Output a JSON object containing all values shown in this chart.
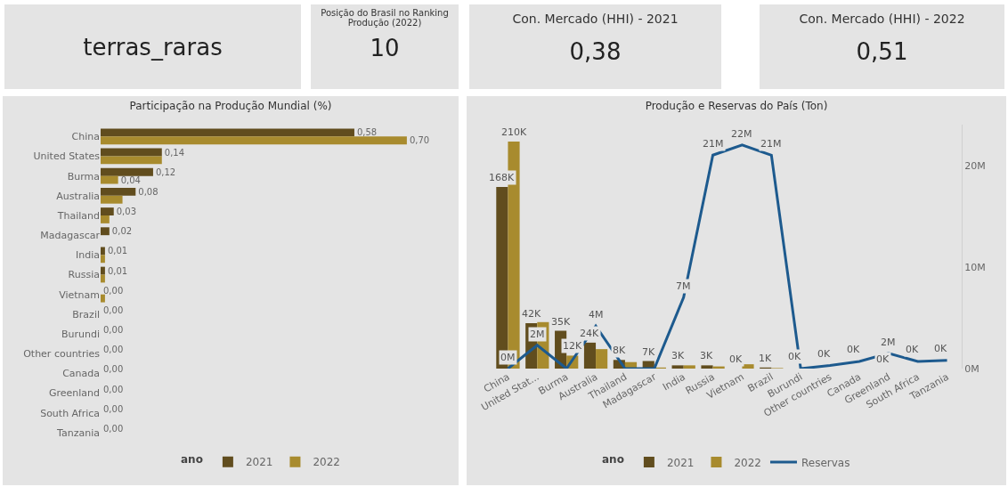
{
  "chart_data": [
    {
      "type": "other",
      "title": "terras_raras",
      "annotations": [
        "Posição do Brasil no Ranking Produção (2022)",
        "10",
        "Con. Mercado (HHI) - 2021",
        "0,38",
        "Con. Mercado (HHI) - 2022",
        "0,51"
      ]
    },
    {
      "type": "bar",
      "title": "Participação na Produção Mundial (%)",
      "orientation": "horizontal",
      "legend_title": "ano",
      "legend": "bottom",
      "tick_labels": "y",
      "categories": [
        "China",
        "United States",
        "Burma",
        "Australia",
        "Thailand",
        "Madagascar",
        "India",
        "Russia",
        "Vietnam",
        "Brazil",
        "Burundi",
        "Other countries",
        "Canada",
        "Greenland",
        "South Africa",
        "Tanzania"
      ],
      "series": [
        {
          "name": "2021",
          "color": "#614d1e",
          "values": [
            0.58,
            0.14,
            0.12,
            0.08,
            0.03,
            0.02,
            0.01,
            0.01,
            0.0,
            0.0,
            0.0,
            0.0,
            0.0,
            0.0,
            0.0,
            0.0
          ],
          "value_labels": [
            "0,58",
            "0,14",
            "0,12",
            "0,08",
            "0,03",
            "0,02",
            "0,01",
            "0,01",
            "0,00",
            "0,00",
            "0,00",
            "0,00",
            "0,00",
            "0,00",
            "0,00",
            "0,00"
          ]
        },
        {
          "name": "2022",
          "color": "#a88b2e",
          "values": [
            0.7,
            0.14,
            0.04,
            0.05,
            0.02,
            0.0,
            0.01,
            0.01,
            0.01,
            0.0,
            0.0,
            0.0,
            0.0,
            0.0,
            0.0,
            0.0
          ],
          "value_labels": [
            "0,70",
            null,
            "0,04",
            null,
            null,
            null,
            null,
            null,
            null,
            null,
            null,
            null,
            null,
            null,
            null,
            null
          ]
        }
      ]
    },
    {
      "type": "bar",
      "title": "Produção e Reservas do País (Ton)",
      "legend_title": "ano",
      "legend": "bottom",
      "categories": [
        "China",
        "United Stat...",
        "Burma",
        "Australia",
        "Thailand",
        "Madagascar",
        "India",
        "Russia",
        "Vietnam",
        "Brazil",
        "Burundi",
        "Other countries",
        "Canada",
        "Greenland",
        "South Africa",
        "Tanzania"
      ],
      "y2lim": [
        0,
        24000000
      ],
      "y2ticks": [
        {
          "value": 0,
          "label": "0M"
        },
        {
          "value": 10000000,
          "label": "10M"
        },
        {
          "value": 20000000,
          "label": "20M"
        }
      ],
      "series": [
        {
          "name": "2021",
          "color": "#614d1e",
          "values": [
            168000,
            42000,
            35000,
            24000,
            8000,
            7000,
            3000,
            3000,
            0,
            1000,
            0,
            0,
            0,
            0,
            0,
            0
          ],
          "value_labels": [
            "168K",
            "42K",
            "35K",
            "24K",
            "8K",
            "7K",
            "3K",
            "3K",
            "0K",
            "1K",
            "0K",
            "0K",
            "0K",
            "0K",
            "0K",
            "0K"
          ]
        },
        {
          "name": "2022",
          "color": "#a88b2e",
          "values": [
            210000,
            43000,
            12000,
            18000,
            6000,
            1000,
            3000,
            2000,
            4000,
            500,
            0,
            0,
            0,
            0,
            0,
            0
          ],
          "value_labels": [
            "210K",
            null,
            "12K",
            null,
            null,
            null,
            null,
            null,
            null,
            null,
            null,
            null,
            null,
            null,
            null,
            null
          ]
        },
        {
          "name": "Reservas",
          "type": "line",
          "axis": "y2",
          "color": "#1d5a8e",
          "values": [
            0,
            2300000,
            0,
            4200000,
            0,
            0,
            7000000,
            21000000,
            22000000,
            21000000,
            0,
            300000,
            700000,
            1500000,
            700000,
            800000
          ],
          "value_labels": [
            "0M",
            "2M",
            null,
            "4M",
            null,
            null,
            "7M",
            "21M",
            "22M",
            "21M",
            null,
            null,
            null,
            "2M",
            null,
            null
          ]
        }
      ]
    }
  ]
}
